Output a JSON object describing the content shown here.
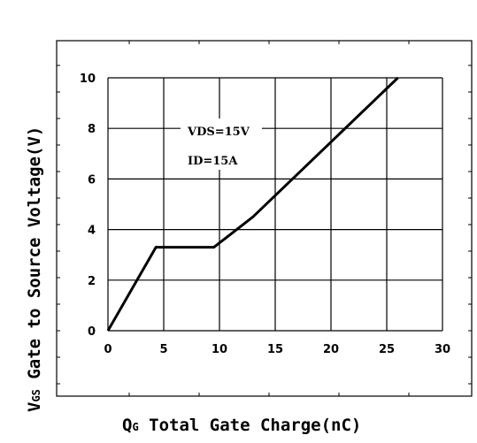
{
  "chart_data": {
    "type": "line",
    "xlabel_main": "Q",
    "xlabel_sub": "G",
    "xlabel_rest": " Total Gate Charge(nC)",
    "ylabel_main": "V",
    "ylabel_sub": "GS",
    "ylabel_rest": " Gate to Source Voltage(V)",
    "xlim": [
      0,
      30
    ],
    "ylim": [
      0,
      10
    ],
    "x_ticks": [
      0,
      5,
      10,
      15,
      20,
      25,
      30
    ],
    "y_ticks": [
      0,
      2,
      4,
      6,
      8,
      10
    ],
    "grid": true,
    "annotations": [
      "VDS=15V",
      "ID=15A"
    ],
    "series": [
      {
        "x": [
          0,
          4.3,
          9.5,
          13,
          26
        ],
        "y": [
          0,
          3.3,
          3.3,
          4.5,
          10
        ]
      }
    ]
  }
}
